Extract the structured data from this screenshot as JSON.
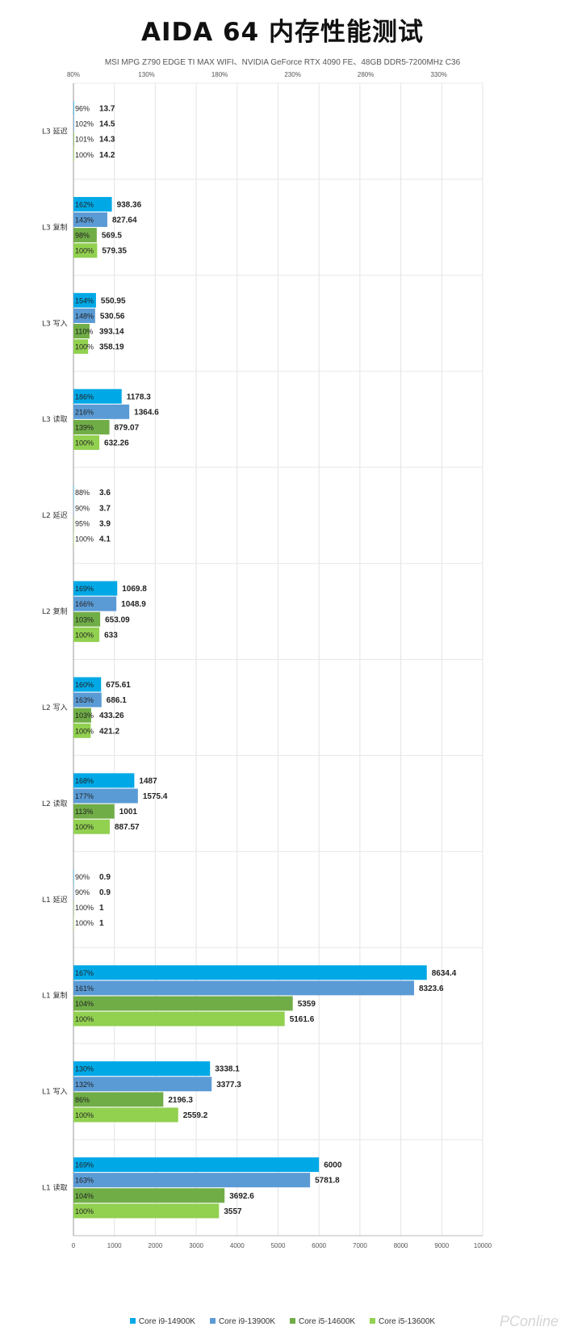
{
  "chart_data": {
    "type": "bar",
    "orientation": "horizontal",
    "title": "AIDA 64 内存性能测试",
    "subtitle": "MSI MPG Z790 EDGE TI MAX WIFI、NVIDIA GeForce RTX 4090 FE、48GB DDR5-7200MHz C36",
    "categories": [
      "L3 延迟",
      "L3 复制",
      "L3 写入",
      "L3 读取",
      "L2 延迟",
      "L2 复制",
      "L2 写入",
      "L2 读取",
      "L1 延迟",
      "L1 复制",
      "L1 写入",
      "L1 读取"
    ],
    "series": [
      {
        "name": "Core i9-14900K",
        "color": "#00a8e6",
        "values": [
          13.7,
          938.36,
          550.95,
          1178.3,
          3.6,
          1069.8,
          675.61,
          1487,
          0.9,
          8634.4,
          3338.1,
          6000
        ],
        "value_labels": [
          "13.7",
          "938.36",
          "550.95",
          "1178.3",
          "3.6",
          "1069.8",
          "675.61",
          "1487",
          "0.9",
          "8634.4",
          "3338.1",
          "6000"
        ],
        "percent_labels": [
          "96%",
          "162%",
          "154%",
          "186%",
          "88%",
          "169%",
          "160%",
          "168%",
          "90%",
          "167%",
          "130%",
          "169%"
        ],
        "percents": [
          96,
          162,
          154,
          186,
          88,
          169,
          160,
          168,
          90,
          167,
          130,
          169
        ]
      },
      {
        "name": "Core i9-13900K",
        "color": "#5b9bd5",
        "values": [
          14.5,
          827.64,
          530.56,
          1364.6,
          3.7,
          1048.9,
          686.1,
          1575.4,
          0.9,
          8323.6,
          3377.3,
          5781.8
        ],
        "value_labels": [
          "14.5",
          "827.64",
          "530.56",
          "1364.6",
          "3.7",
          "1048.9",
          "686.1",
          "1575.4",
          "0.9",
          "8323.6",
          "3377.3",
          "5781.8"
        ],
        "percent_labels": [
          "102%",
          "143%",
          "148%",
          "216%",
          "90%",
          "166%",
          "163%",
          "177%",
          "90%",
          "161%",
          "132%",
          "163%"
        ],
        "percents": [
          102,
          143,
          148,
          216,
          90,
          166,
          163,
          177,
          90,
          161,
          132,
          163
        ]
      },
      {
        "name": "Core i5-14600K",
        "color": "#70ad47",
        "values": [
          14.3,
          569.5,
          393.14,
          879.07,
          3.9,
          653.09,
          433.26,
          1001,
          1,
          5359,
          2196.3,
          3692.6
        ],
        "value_labels": [
          "14.3",
          "569.5",
          "393.14",
          "879.07",
          "3.9",
          "653.09",
          "433.26",
          "1001",
          "1",
          "5359",
          "2196.3",
          "3692.6"
        ],
        "percent_labels": [
          "101%",
          "98%",
          "110%",
          "139%",
          "95%",
          "103%",
          "103%",
          "113%",
          "100%",
          "104%",
          "86%",
          "104%"
        ],
        "percents": [
          101,
          98,
          110,
          139,
          95,
          103,
          103,
          113,
          100,
          104,
          86,
          104
        ]
      },
      {
        "name": "Core i5-13600K",
        "color": "#92d050",
        "values": [
          14.2,
          579.35,
          358.19,
          632.26,
          4.1,
          633,
          421.2,
          887.57,
          1,
          5161.6,
          2559.2,
          3557
        ],
        "value_labels": [
          "14.2",
          "579.35",
          "358.19",
          "632.26",
          "4.1",
          "633",
          "421.2",
          "887.57",
          "1",
          "5161.6",
          "2559.2",
          "3557"
        ],
        "percent_labels": [
          "100%",
          "100%",
          "100%",
          "100%",
          "100%",
          "100%",
          "100%",
          "100%",
          "100%",
          "100%",
          "100%",
          "100%"
        ],
        "percents": [
          100,
          100,
          100,
          100,
          100,
          100,
          100,
          100,
          100,
          100,
          100,
          100
        ]
      }
    ],
    "bottom_axis": {
      "range": [
        0,
        10000
      ],
      "ticks": [
        0,
        1000,
        2000,
        3000,
        4000,
        5000,
        6000,
        7000,
        8000,
        9000,
        10000
      ],
      "tick_labels": [
        "0",
        "1000",
        "2000",
        "3000",
        "4000",
        "5000",
        "6000",
        "7000",
        "8000",
        "9000",
        "10000"
      ]
    },
    "top_axis": {
      "range_percent": [
        80,
        360
      ],
      "ticks": [
        80,
        130,
        180,
        230,
        280,
        330
      ],
      "tick_labels": [
        "80%",
        "130%",
        "180%",
        "230%",
        "280%",
        "330%"
      ]
    },
    "grid": true,
    "legend_position": "bottom"
  },
  "watermark": "PConline"
}
